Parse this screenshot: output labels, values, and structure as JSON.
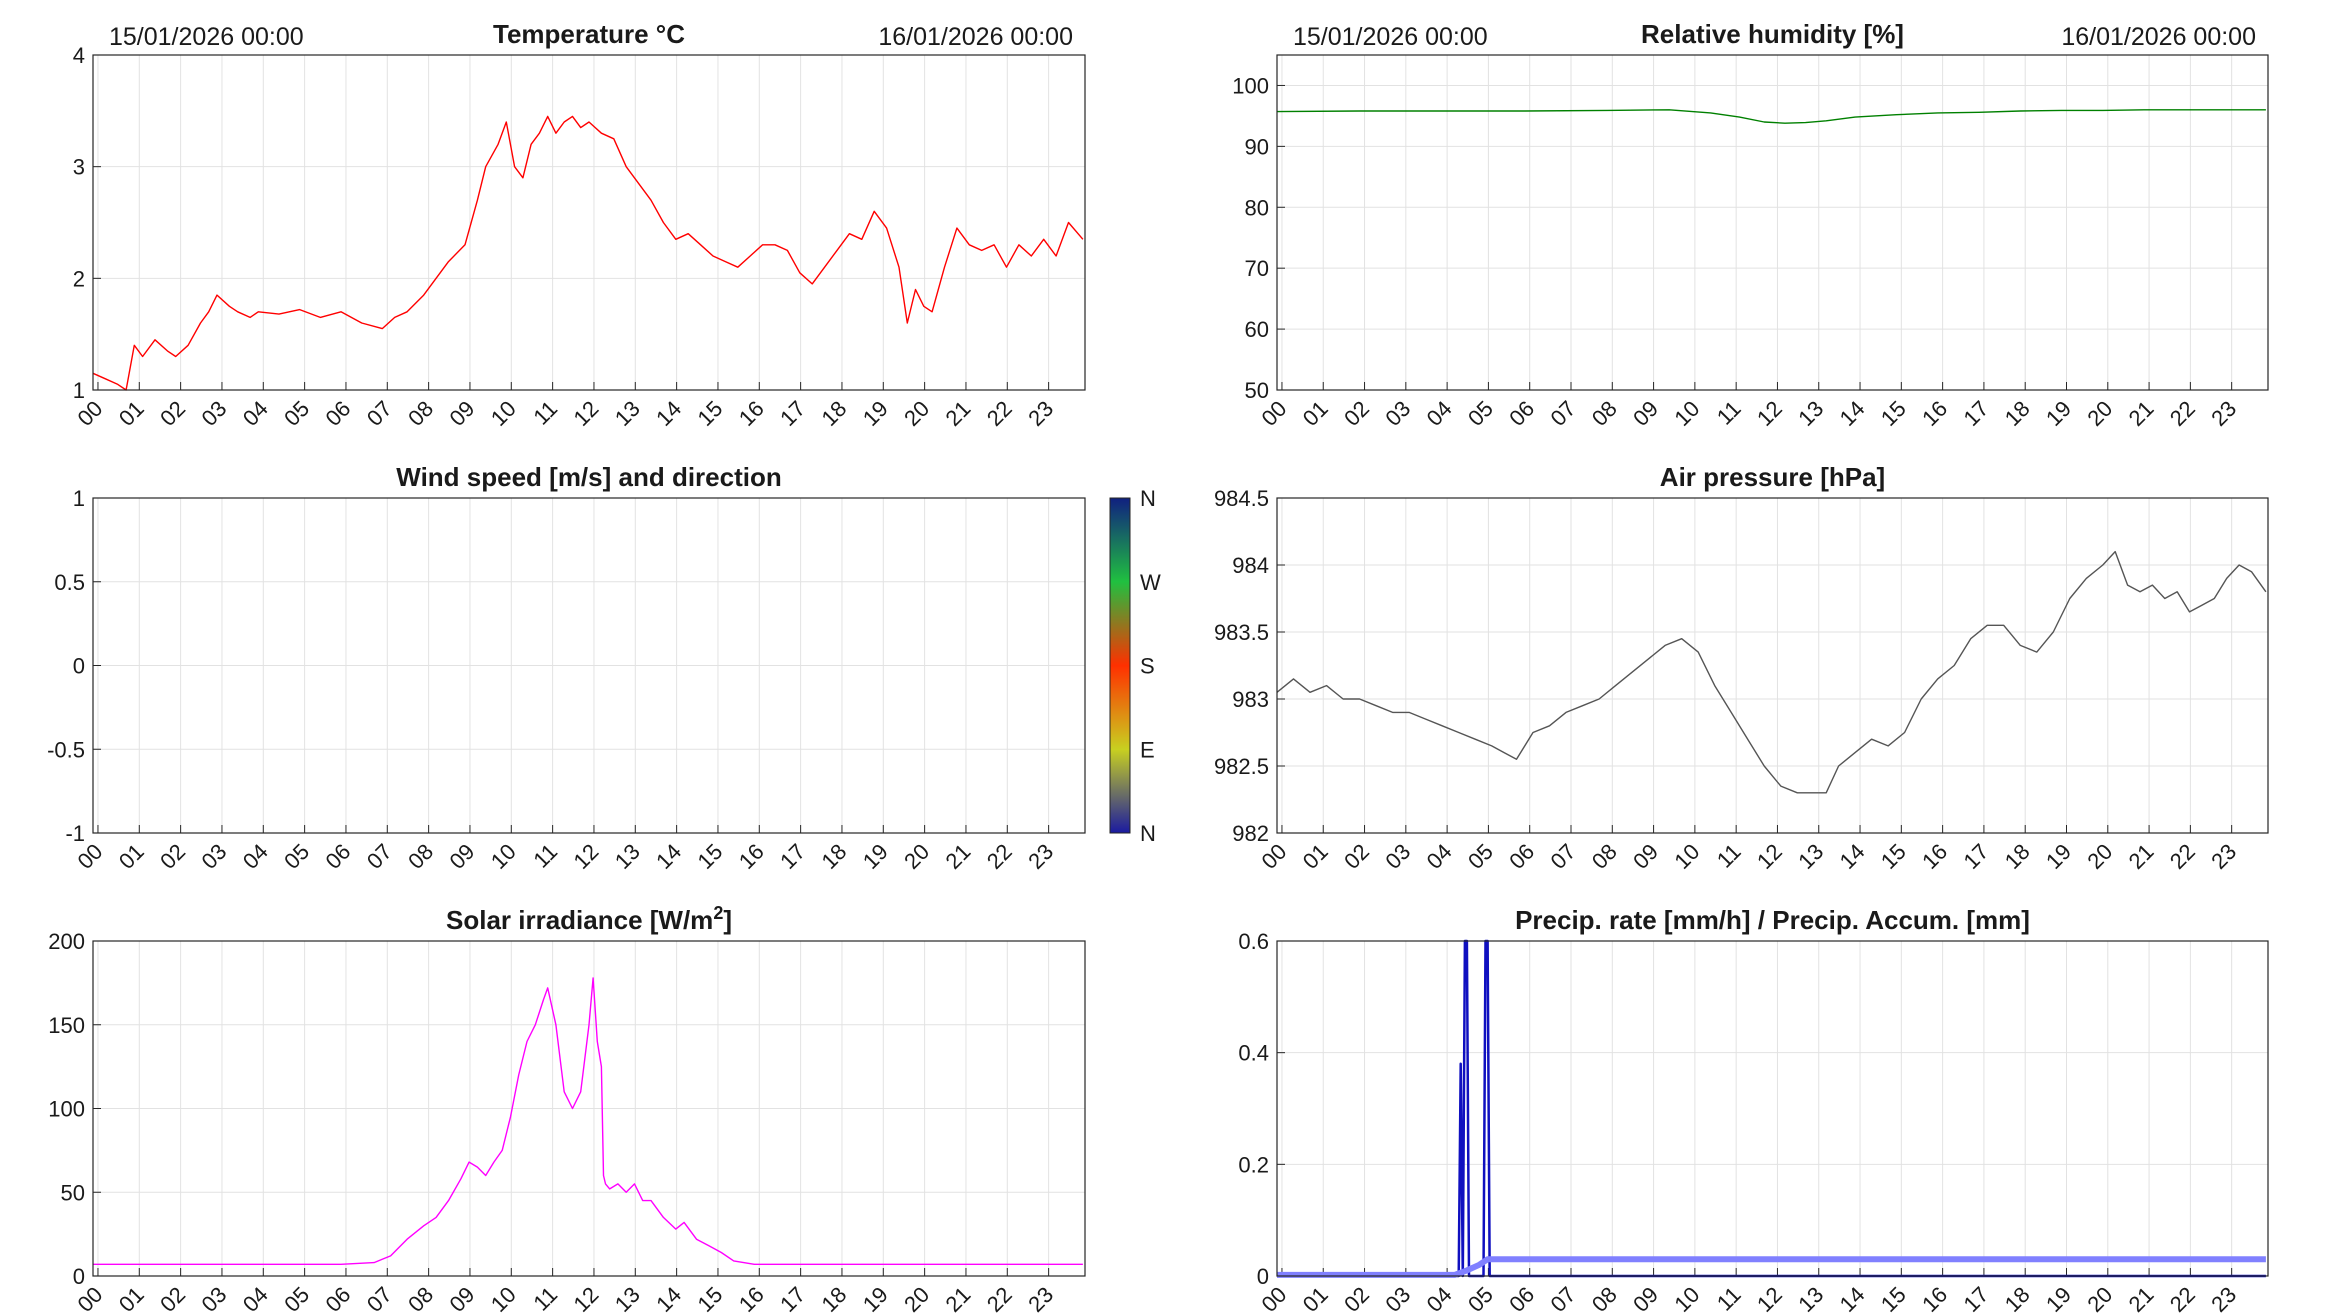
{
  "chart_data": [
    {
      "type": "line",
      "title": "Temperature °C",
      "date_left": "15/01/2026 00:00",
      "date_right": "16/01/2026 00:00",
      "ylim": [
        1,
        4
      ],
      "yticks": [
        "1",
        "2",
        "3",
        "4"
      ],
      "xticks": [
        "00",
        "01",
        "02",
        "03",
        "04",
        "05",
        "06",
        "07",
        "08",
        "09",
        "10",
        "11",
        "12",
        "13",
        "14",
        "15",
        "16",
        "17",
        "18",
        "19",
        "20",
        "21",
        "22",
        "23"
      ],
      "xlim": [
        0,
        24
      ],
      "grid": true,
      "color": "#ff0000",
      "series": [
        {
          "x": [
            0,
            0.3,
            0.6,
            0.8,
            1.0,
            1.2,
            1.5,
            1.8,
            2.0,
            2.3,
            2.6,
            2.8,
            3.0,
            3.3,
            3.5,
            3.8,
            4.0,
            4.5,
            5.0,
            5.5,
            6.0,
            6.5,
            7.0,
            7.3,
            7.6,
            8.0,
            8.3,
            8.6,
            9.0,
            9.3,
            9.5,
            9.8,
            10.0,
            10.2,
            10.4,
            10.6,
            10.8,
            11.0,
            11.2,
            11.4,
            11.6,
            11.8,
            12.0,
            12.3,
            12.6,
            12.9,
            13.2,
            13.5,
            13.8,
            14.1,
            14.4,
            14.7,
            15.0,
            15.3,
            15.6,
            15.9,
            16.2,
            16.5,
            16.8,
            17.1,
            17.4,
            17.7,
            18.0,
            18.3,
            18.6,
            18.9,
            19.2,
            19.5,
            19.7,
            19.9,
            20.1,
            20.3,
            20.6,
            20.9,
            21.2,
            21.5,
            21.8,
            22.1,
            22.4,
            22.7,
            23.0,
            23.3,
            23.6,
            23.95
          ],
          "y": [
            1.15,
            1.1,
            1.05,
            1.0,
            1.4,
            1.3,
            1.45,
            1.35,
            1.3,
            1.4,
            1.6,
            1.7,
            1.85,
            1.75,
            1.7,
            1.65,
            1.7,
            1.68,
            1.72,
            1.65,
            1.7,
            1.6,
            1.55,
            1.65,
            1.7,
            1.85,
            2.0,
            2.15,
            2.3,
            2.7,
            3.0,
            3.2,
            3.4,
            3.0,
            2.9,
            3.2,
            3.3,
            3.45,
            3.3,
            3.4,
            3.45,
            3.35,
            3.4,
            3.3,
            3.25,
            3.0,
            2.85,
            2.7,
            2.5,
            2.35,
            2.4,
            2.3,
            2.2,
            2.15,
            2.1,
            2.2,
            2.3,
            2.3,
            2.25,
            2.05,
            1.95,
            2.1,
            2.25,
            2.4,
            2.35,
            2.6,
            2.45,
            2.1,
            1.6,
            1.9,
            1.75,
            1.7,
            2.1,
            2.45,
            2.3,
            2.25,
            2.3,
            2.1,
            2.3,
            2.2,
            2.35,
            2.2,
            2.5,
            2.35
          ]
        }
      ]
    },
    {
      "type": "line",
      "title": "Relative humidity [%]",
      "date_left": "15/01/2026 00:00",
      "date_right": "16/01/2026 00:00",
      "ylim": [
        50,
        105
      ],
      "yticks": [
        "50",
        "60",
        "70",
        "80",
        "90",
        "100"
      ],
      "xticks": [
        "00",
        "01",
        "02",
        "03",
        "04",
        "05",
        "06",
        "07",
        "08",
        "09",
        "10",
        "11",
        "12",
        "13",
        "14",
        "15",
        "16",
        "17",
        "18",
        "19",
        "20",
        "21",
        "22",
        "23"
      ],
      "xlim": [
        0,
        24
      ],
      "grid": true,
      "color": "#008000",
      "series": [
        {
          "x": [
            0,
            2,
            4,
            6,
            8,
            9.5,
            10.5,
            11.2,
            11.8,
            12.3,
            12.8,
            13.3,
            14,
            15,
            16,
            17,
            18,
            19,
            20,
            21,
            22,
            23,
            23.95
          ],
          "y": [
            95.7,
            95.8,
            95.8,
            95.8,
            95.9,
            96.0,
            95.5,
            94.8,
            94.0,
            93.8,
            93.9,
            94.2,
            94.8,
            95.2,
            95.5,
            95.6,
            95.8,
            95.9,
            95.9,
            96.0,
            96.0,
            96.0,
            96.0
          ]
        }
      ]
    },
    {
      "type": "line",
      "title": "Wind speed [m/s] and direction",
      "ylim": [
        -1,
        1
      ],
      "yticks": [
        "-1",
        "-0.5",
        "0",
        "0.5",
        "1"
      ],
      "xticks": [
        "00",
        "01",
        "02",
        "03",
        "04",
        "05",
        "06",
        "07",
        "08",
        "09",
        "10",
        "11",
        "12",
        "13",
        "14",
        "15",
        "16",
        "17",
        "18",
        "19",
        "20",
        "21",
        "22",
        "23"
      ],
      "xlim": [
        0,
        24
      ],
      "grid": true,
      "colorbar": {
        "labels": [
          "N",
          "E",
          "S",
          "W",
          "N"
        ],
        "colors": [
          "#1a1aa0",
          "#c8d020",
          "#ff3000",
          "#20c040",
          "#102080"
        ]
      },
      "series": []
    },
    {
      "type": "line",
      "title": "Air pressure [hPa]",
      "ylim": [
        982,
        984.5
      ],
      "yticks": [
        "982",
        "982.5",
        "983",
        "983.5",
        "984",
        "984.5"
      ],
      "xticks": [
        "00",
        "01",
        "02",
        "03",
        "04",
        "05",
        "06",
        "07",
        "08",
        "09",
        "10",
        "11",
        "12",
        "13",
        "14",
        "15",
        "16",
        "17",
        "18",
        "19",
        "20",
        "21",
        "22",
        "23"
      ],
      "xlim": [
        0,
        24
      ],
      "grid": true,
      "color": "#555555",
      "series": [
        {
          "x": [
            0,
            0.4,
            0.8,
            1.2,
            1.6,
            2.0,
            2.4,
            2.8,
            3.2,
            3.6,
            4.0,
            4.4,
            4.8,
            5.2,
            5.5,
            5.8,
            6.2,
            6.6,
            7.0,
            7.4,
            7.8,
            8.2,
            8.6,
            9.0,
            9.4,
            9.8,
            10.2,
            10.6,
            11.0,
            11.4,
            11.8,
            12.2,
            12.6,
            13.0,
            13.3,
            13.6,
            14.0,
            14.4,
            14.8,
            15.2,
            15.6,
            16.0,
            16.4,
            16.8,
            17.2,
            17.6,
            18.0,
            18.4,
            18.8,
            19.2,
            19.6,
            20.0,
            20.3,
            20.6,
            20.9,
            21.2,
            21.5,
            21.8,
            22.1,
            22.4,
            22.7,
            23.0,
            23.3,
            23.6,
            23.95
          ],
          "y": [
            983.05,
            983.15,
            983.05,
            983.1,
            983.0,
            983.0,
            982.95,
            982.9,
            982.9,
            982.85,
            982.8,
            982.75,
            982.7,
            982.65,
            982.6,
            982.55,
            982.75,
            982.8,
            982.9,
            982.95,
            983.0,
            983.1,
            983.2,
            983.3,
            983.4,
            983.45,
            983.35,
            983.1,
            982.9,
            982.7,
            982.5,
            982.35,
            982.3,
            982.3,
            982.3,
            982.5,
            982.6,
            982.7,
            982.65,
            982.75,
            983.0,
            983.15,
            983.25,
            983.45,
            983.55,
            983.55,
            983.4,
            983.35,
            983.5,
            983.75,
            983.9,
            984.0,
            984.1,
            983.85,
            983.8,
            983.85,
            983.75,
            983.8,
            983.65,
            983.7,
            983.75,
            983.9,
            984.0,
            983.95,
            983.8
          ]
        }
      ]
    },
    {
      "type": "line",
      "title": "Solar irradiance [W/m",
      "title_superscript": "2",
      "title_suffix": "]",
      "ylim": [
        0,
        200
      ],
      "yticks": [
        "0",
        "50",
        "100",
        "150",
        "200"
      ],
      "xticks": [
        "00",
        "01",
        "02",
        "03",
        "04",
        "05",
        "06",
        "07",
        "08",
        "09",
        "10",
        "11",
        "12",
        "13",
        "14",
        "15",
        "16",
        "17",
        "18",
        "19",
        "20",
        "21",
        "22",
        "23"
      ],
      "xlim": [
        0,
        24
      ],
      "grid": true,
      "color": "#ff00ff",
      "series": [
        {
          "x": [
            0,
            2,
            4,
            6,
            6.8,
            7.2,
            7.6,
            8.0,
            8.3,
            8.6,
            8.9,
            9.1,
            9.3,
            9.5,
            9.7,
            9.9,
            10.1,
            10.3,
            10.5,
            10.7,
            10.9,
            11.0,
            11.2,
            11.4,
            11.6,
            11.8,
            12.0,
            12.1,
            12.2,
            12.3,
            12.35,
            12.4,
            12.5,
            12.7,
            12.9,
            13.1,
            13.3,
            13.5,
            13.8,
            14.1,
            14.3,
            14.6,
            14.9,
            15.2,
            15.5,
            16,
            18,
            20,
            22,
            23.95
          ],
          "y": [
            7,
            7,
            7,
            7,
            8,
            12,
            22,
            30,
            35,
            45,
            58,
            68,
            65,
            60,
            68,
            75,
            95,
            120,
            140,
            150,
            165,
            172,
            150,
            110,
            100,
            110,
            150,
            178,
            140,
            125,
            60,
            55,
            52,
            55,
            50,
            55,
            45,
            45,
            35,
            28,
            32,
            22,
            18,
            14,
            9,
            7,
            7,
            7,
            7,
            7
          ]
        }
      ]
    },
    {
      "type": "line",
      "title": "Precip. rate [mm/h] / Precip. Accum. [mm]",
      "ylim": [
        0,
        0.6
      ],
      "yticks": [
        "0",
        "0.2",
        "0.4",
        "0.6"
      ],
      "xticks": [
        "00",
        "01",
        "02",
        "03",
        "04",
        "05",
        "06",
        "07",
        "08",
        "09",
        "10",
        "11",
        "12",
        "13",
        "14",
        "15",
        "16",
        "17",
        "18",
        "19",
        "20",
        "21",
        "22",
        "23"
      ],
      "xlim": [
        0,
        24
      ],
      "grid": true,
      "series": [
        {
          "name": "",
          "color": "#1010c0",
          "x": [
            0,
            4.4,
            4.45,
            4.5,
            4.55,
            4.6,
            4.65,
            4.7,
            4.75,
            5.0,
            5.05,
            5.1,
            5.15,
            23.95
          ],
          "y": [
            0,
            0,
            0.38,
            0,
            0.6,
            0.6,
            0,
            0,
            0,
            0,
            0.6,
            0.6,
            0,
            0
          ]
        },
        {
          "name": "",
          "color": "#8080ff",
          "x": [
            0,
            4.3,
            4.6,
            4.9,
            5.1,
            6,
            10,
            15,
            20,
            23.95
          ],
          "y": [
            0.002,
            0.002,
            0.01,
            0.02,
            0.03,
            0.03,
            0.03,
            0.03,
            0.03,
            0.03
          ]
        }
      ]
    }
  ]
}
